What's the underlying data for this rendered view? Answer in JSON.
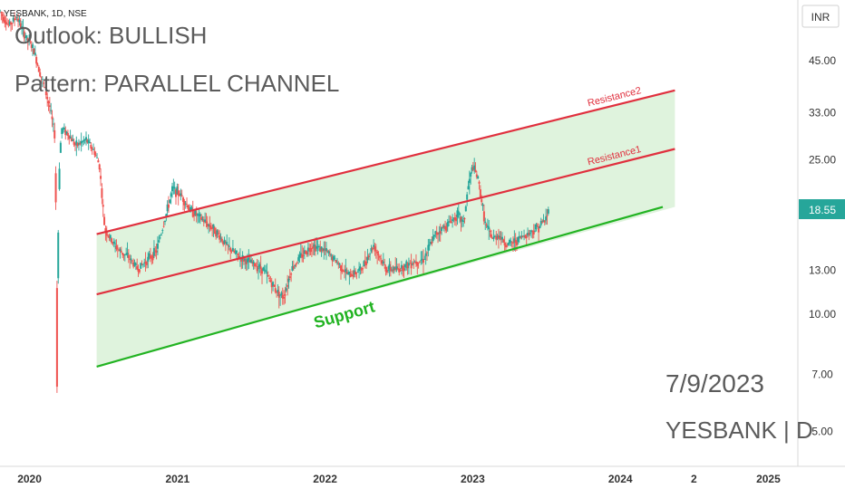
{
  "symbol_header": "YESBANK, 1D, NSE",
  "currency_label": "INR",
  "outlook_text": "Outlook: BULLISH",
  "pattern_text": "Pattern: PARALLEL CHANNEL",
  "date_text": "7/9/2023",
  "ticker_text": "YESBANK | D",
  "current_price": "18.55",
  "colors": {
    "up": "#26a69a",
    "down": "#ef5350",
    "resistance": "#e0303e",
    "support": "#22b322",
    "channel_fill": "#dff3dd",
    "price_badge": "#26a69a",
    "grid_text": "#333333",
    "overlay_text": "#5b5b5b"
  },
  "chart_data": {
    "type": "line",
    "title": "",
    "x_ticks": [
      "2020",
      "2021",
      "2022",
      "2023",
      "2024",
      "2",
      "2025"
    ],
    "x_tick_dates": [
      "2020-01-01",
      "2021-01-01",
      "2022-01-01",
      "2023-01-01",
      "2024-01-01",
      "2024-07-01",
      "2025-01-01"
    ],
    "y_ticks": [
      "5.00",
      "7.00",
      "10.00",
      "13.00",
      "18.55",
      "25.00",
      "33.00",
      "45.00"
    ],
    "y_scale": "log",
    "ylim": [
      4.2,
      62
    ],
    "xlim": [
      "2019-10-20",
      "2025-03-15"
    ],
    "price_series": {
      "name": "YESBANK",
      "dates": [
        "2019-10-20",
        "2019-11-10",
        "2019-12-01",
        "2019-12-20",
        "2020-01-10",
        "2020-02-01",
        "2020-02-20",
        "2020-03-05",
        "2020-03-09",
        "2020-03-13",
        "2020-03-20",
        "2020-04-05",
        "2020-04-25",
        "2020-05-20",
        "2020-06-10",
        "2020-06-22",
        "2020-07-05",
        "2020-07-20",
        "2020-08-10",
        "2020-09-01",
        "2020-09-25",
        "2020-10-20",
        "2020-11-10",
        "2020-12-01",
        "2020-12-20",
        "2021-01-12",
        "2021-02-01",
        "2021-03-01",
        "2021-04-01",
        "2021-05-01",
        "2021-06-01",
        "2021-07-01",
        "2021-08-01",
        "2021-09-01",
        "2021-09-20",
        "2021-10-10",
        "2021-11-01",
        "2021-12-01",
        "2022-01-01",
        "2022-02-01",
        "2022-03-01",
        "2022-04-01",
        "2022-05-01",
        "2022-06-01",
        "2022-07-01",
        "2022-08-01",
        "2022-09-01",
        "2022-10-01",
        "2022-11-01",
        "2022-11-25",
        "2022-12-10",
        "2022-12-20",
        "2023-01-01",
        "2023-01-15",
        "2023-02-01",
        "2023-02-20",
        "2023-03-05",
        "2023-03-25",
        "2023-04-15",
        "2023-05-05",
        "2023-05-25",
        "2023-06-15",
        "2023-07-01",
        "2023-07-09"
      ],
      "values": [
        60,
        55,
        58,
        52,
        48,
        40,
        34,
        28,
        6.5,
        22,
        30,
        29,
        27,
        28,
        26,
        24,
        16.5,
        15.5,
        14.5,
        14,
        13,
        13.8,
        14.5,
        17.5,
        21,
        20,
        18.5,
        17.5,
        16.5,
        15,
        14,
        13.5,
        13,
        11.5,
        11,
        13,
        14,
        15,
        14.5,
        13.5,
        12.5,
        13,
        15,
        13,
        13,
        13.5,
        13.8,
        16,
        17,
        18,
        17,
        21,
        24,
        22,
        17,
        15.5,
        16,
        15,
        15.3,
        15.8,
        16.2,
        16.8,
        17.5,
        18.55
      ]
    },
    "lines": [
      {
        "name": "Resistance2",
        "from": [
          "2020-06-15",
          16.0
        ],
        "to": [
          "2024-05-15",
          37.5
        ]
      },
      {
        "name": "Resistance1",
        "from": [
          "2020-06-15",
          11.2
        ],
        "to": [
          "2024-05-15",
          26.5
        ]
      },
      {
        "name": "Support",
        "from": [
          "2020-06-15",
          7.3
        ],
        "to": [
          "2024-04-15",
          18.8
        ]
      }
    ]
  }
}
